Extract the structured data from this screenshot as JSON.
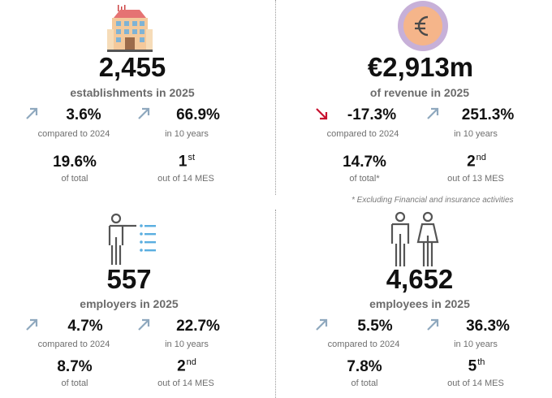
{
  "colors": {
    "accent_up": "#8fa8be",
    "accent_down": "#c8102e",
    "text_dark": "#111111",
    "text_muted": "#6f6f6f"
  },
  "establishments": {
    "icon": "building-icon",
    "value": "2,455",
    "label": "establishments in 2025",
    "change_vs_prev": {
      "direction": "up",
      "value": "3.6%",
      "caption": "compared to 2024"
    },
    "change_10y": {
      "direction": "up",
      "value": "66.9%",
      "caption": "in 10 years"
    },
    "share": {
      "value": "19.6%",
      "caption": "of total"
    },
    "rank": {
      "value": "1",
      "suffix": "st",
      "caption": "out of 14 MES"
    }
  },
  "revenue": {
    "icon": "euro-coin-icon",
    "value": "€2,913m",
    "label": "of revenue in 2025",
    "change_vs_prev": {
      "direction": "down",
      "value": "-17.3%",
      "caption": "compared to 2024"
    },
    "change_10y": {
      "direction": "up",
      "value": "251.3%",
      "caption": "in 10 years"
    },
    "share": {
      "value": "14.7%",
      "caption": "of total*"
    },
    "rank": {
      "value": "2",
      "suffix": "nd",
      "caption": "out of 13 MES"
    },
    "footnote": "* Excluding Financial and insurance activities"
  },
  "employers": {
    "icon": "presenter-icon",
    "value": "557",
    "label": "employers in 2025",
    "change_vs_prev": {
      "direction": "up",
      "value": "4.7%",
      "caption": "compared to 2024"
    },
    "change_10y": {
      "direction": "up",
      "value": "22.7%",
      "caption": "in 10 years"
    },
    "share": {
      "value": "8.7%",
      "caption": "of total"
    },
    "rank": {
      "value": "2",
      "suffix": "nd",
      "caption": "out of 14 MES"
    }
  },
  "employees": {
    "icon": "people-icon",
    "value": "4,652",
    "label": "employees in 2025",
    "change_vs_prev": {
      "direction": "up",
      "value": "5.5%",
      "caption": "compared to 2024"
    },
    "change_10y": {
      "direction": "up",
      "value": "36.3%",
      "caption": "in 10 years"
    },
    "share": {
      "value": "7.8%",
      "caption": "of total"
    },
    "rank": {
      "value": "5",
      "suffix": "th",
      "caption": "out of 14 MES"
    }
  }
}
